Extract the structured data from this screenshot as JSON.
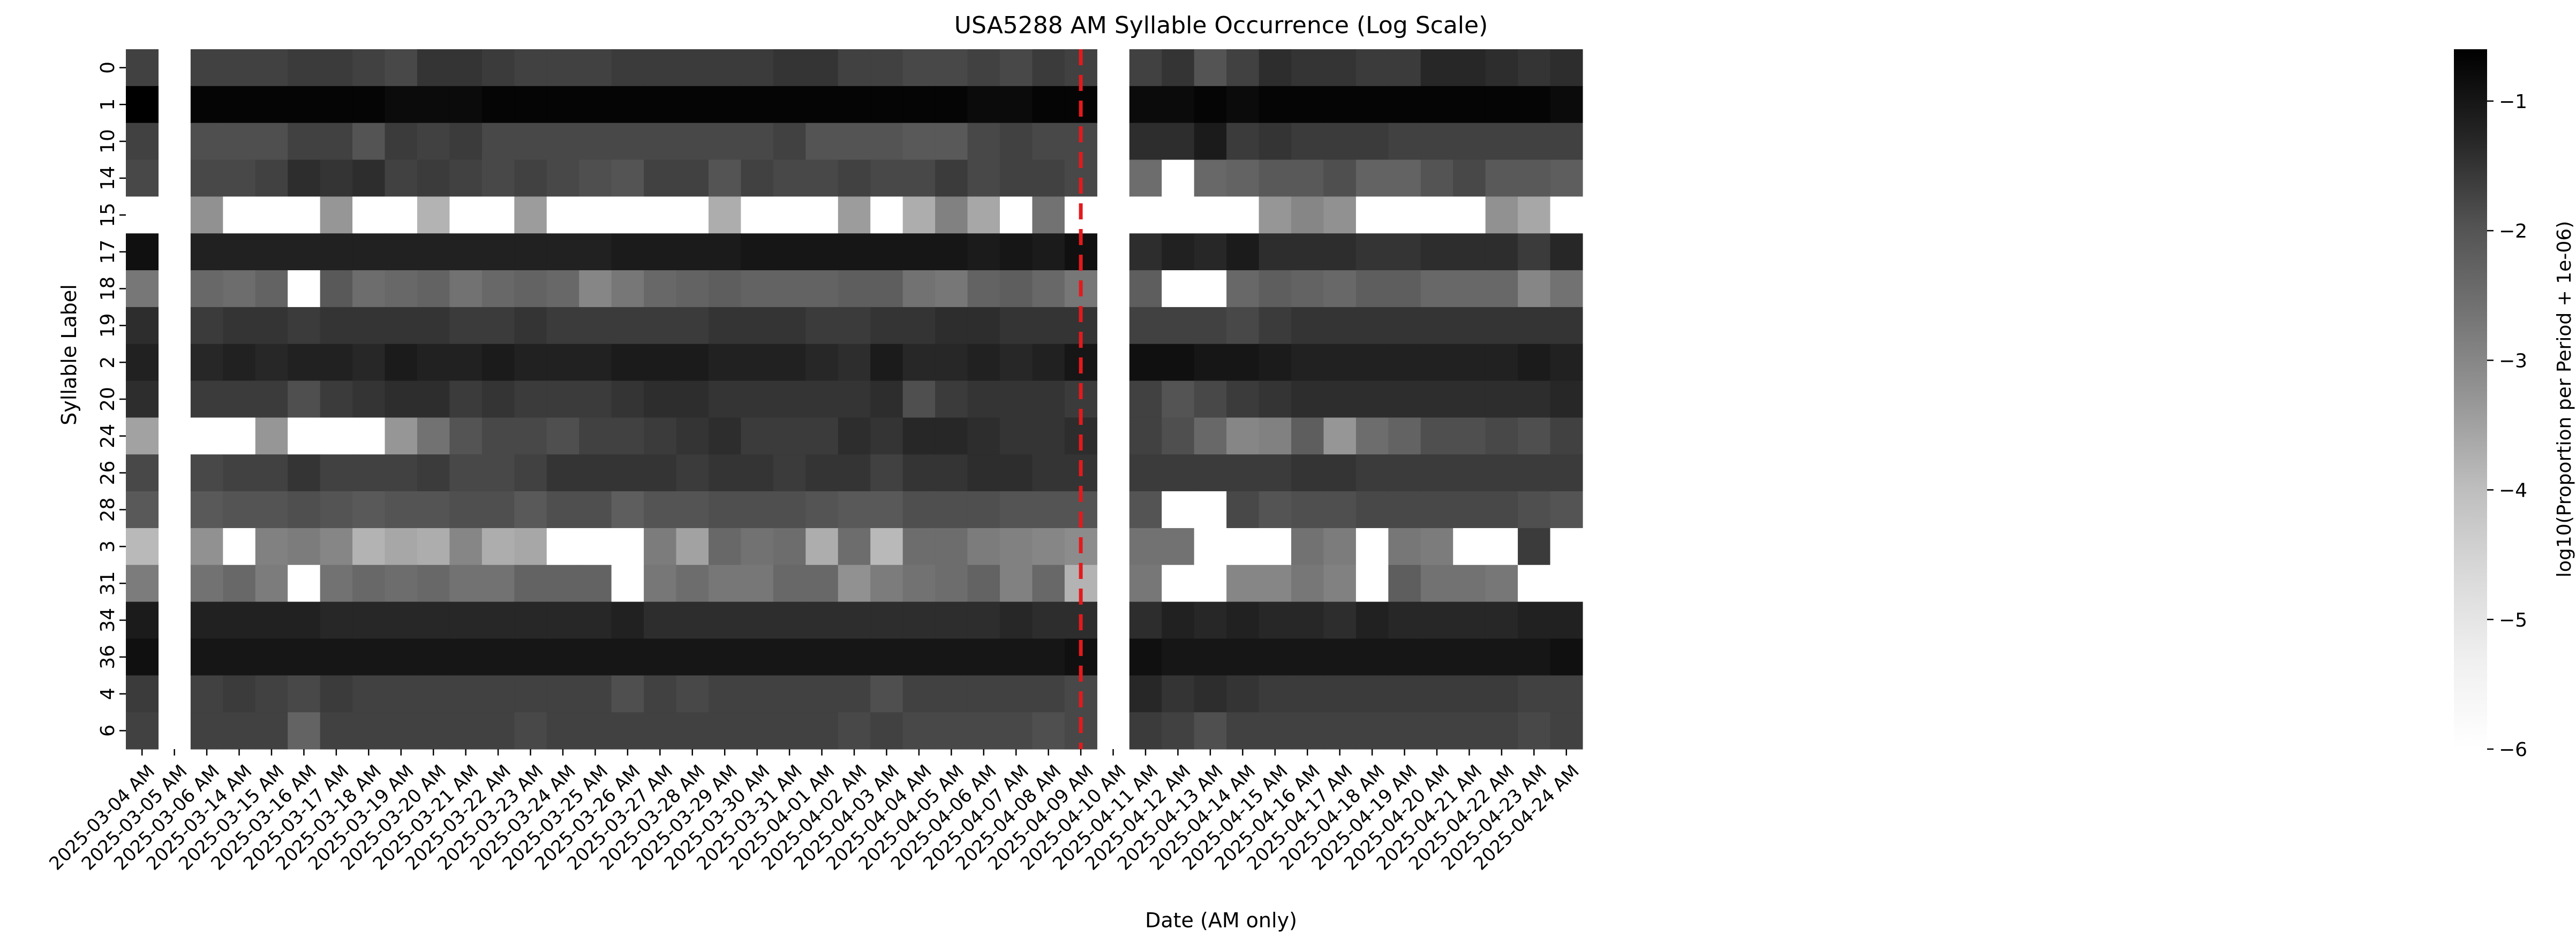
{
  "chart_data": {
    "type": "heatmap",
    "title": "USA5288 AM Syllable Occurrence (Log Scale)",
    "xlabel": "Date (AM only)",
    "ylabel": "Syllable Label",
    "colorbar": {
      "label": "log10(Proportion per Period + 1e-06)",
      "vmin": -6,
      "vmax": -0.6,
      "ticks": [
        -1,
        -2,
        -3,
        -4,
        -5,
        -6
      ],
      "tick_labels": [
        "−1",
        "−2",
        "−3",
        "−4",
        "−5",
        "−6"
      ],
      "colormap": "Greys"
    },
    "x_labels": [
      "2025-03-04 AM",
      "2025-03-05 AM",
      "2025-03-06 AM",
      "2025-03-14 AM",
      "2025-03-15 AM",
      "2025-03-16 AM",
      "2025-03-17 AM",
      "2025-03-18 AM",
      "2025-03-19 AM",
      "2025-03-20 AM",
      "2025-03-21 AM",
      "2025-03-22 AM",
      "2025-03-23 AM",
      "2025-03-24 AM",
      "2025-03-25 AM",
      "2025-03-26 AM",
      "2025-03-27 AM",
      "2025-03-28 AM",
      "2025-03-29 AM",
      "2025-03-30 AM",
      "2025-03-31 AM",
      "2025-04-01 AM",
      "2025-04-02 AM",
      "2025-04-03 AM",
      "2025-04-04 AM",
      "2025-04-05 AM",
      "2025-04-06 AM",
      "2025-04-07 AM",
      "2025-04-08 AM",
      "2025-04-09 AM",
      "2025-04-10 AM",
      "2025-04-11 AM",
      "2025-04-12 AM",
      "2025-04-13 AM",
      "2025-04-14 AM",
      "2025-04-15 AM",
      "2025-04-16 AM",
      "2025-04-17 AM",
      "2025-04-18 AM",
      "2025-04-19 AM",
      "2025-04-20 AM",
      "2025-04-21 AM",
      "2025-04-22 AM",
      "2025-04-23 AM",
      "2025-04-24 AM"
    ],
    "y_labels": [
      "0",
      "1",
      "10",
      "14",
      "15",
      "17",
      "18",
      "19",
      "2",
      "20",
      "24",
      "26",
      "28",
      "3",
      "31",
      "34",
      "36",
      "4",
      "6"
    ],
    "empty_columns": [
      "2025-03-05 AM",
      "2025-04-10 AM"
    ],
    "missing_value": -6,
    "z": [
      [
        -1.7,
        null,
        -1.7,
        -1.7,
        -1.7,
        -1.6,
        -1.6,
        -1.7,
        -1.8,
        -1.5,
        -1.5,
        -1.6,
        -1.7,
        -1.7,
        -1.7,
        -1.6,
        -1.6,
        -1.6,
        -1.6,
        -1.6,
        -1.5,
        -1.5,
        -1.7,
        -1.7,
        -1.8,
        -1.8,
        -1.7,
        -1.8,
        -1.6,
        -1.7,
        null,
        -1.7,
        -1.5,
        -2.0,
        -1.7,
        -1.4,
        -1.5,
        -1.5,
        -1.6,
        -1.6,
        -1.3,
        -1.3,
        -1.4,
        -1.5,
        -1.4
      ],
      [
        -0.6,
        null,
        -0.7,
        -0.7,
        -0.7,
        -0.7,
        -0.7,
        -0.7,
        -0.8,
        -0.8,
        -0.8,
        -0.7,
        -0.7,
        -0.7,
        -0.7,
        -0.7,
        -0.7,
        -0.7,
        -0.7,
        -0.7,
        -0.7,
        -0.7,
        -0.7,
        -0.7,
        -0.7,
        -0.7,
        -0.8,
        -0.8,
        -0.7,
        -0.7,
        null,
        -0.8,
        -0.8,
        -0.7,
        -0.8,
        -0.7,
        -0.7,
        -0.7,
        -0.7,
        -0.7,
        -0.7,
        -0.7,
        -0.7,
        -0.7,
        -0.8
      ],
      [
        -1.7,
        null,
        -1.9,
        -1.9,
        -1.9,
        -1.7,
        -1.7,
        -2.0,
        -1.6,
        -1.7,
        -1.6,
        -1.8,
        -1.8,
        -1.8,
        -1.8,
        -1.8,
        -1.8,
        -1.8,
        -1.8,
        -1.8,
        -1.7,
        -2.0,
        -2.0,
        -2.0,
        -2.1,
        -2.1,
        -1.8,
        -1.7,
        -1.8,
        -1.8,
        null,
        -1.4,
        -1.4,
        -1.1,
        -1.6,
        -1.5,
        -1.6,
        -1.6,
        -1.6,
        -1.7,
        -1.7,
        -1.7,
        -1.7,
        -1.7,
        -1.7
      ],
      [
        -1.8,
        null,
        -1.8,
        -1.8,
        -1.7,
        -1.4,
        -1.5,
        -1.4,
        -1.7,
        -1.6,
        -1.7,
        -1.8,
        -1.7,
        -1.8,
        -1.9,
        -2.0,
        -1.7,
        -1.7,
        -2.0,
        -1.7,
        -1.8,
        -1.8,
        -1.7,
        -1.8,
        -1.8,
        -1.6,
        -1.8,
        -1.7,
        -1.7,
        -1.8,
        null,
        -2.5,
        -6,
        -2.4,
        -2.3,
        -2.1,
        -2.1,
        -1.9,
        -2.3,
        -2.3,
        -2.0,
        -1.8,
        -2.1,
        -2.1,
        -2.2
      ],
      [
        -6,
        null,
        -3.2,
        -6,
        -6,
        -6,
        -3.3,
        -6,
        -6,
        -3.8,
        -6,
        -6,
        -3.4,
        -6,
        -6,
        -6,
        -6,
        -6,
        -3.7,
        -6,
        -6,
        -6,
        -3.4,
        -6,
        -3.7,
        -2.9,
        -3.6,
        -6,
        -2.6,
        -6,
        null,
        -6,
        -6,
        -6,
        -6,
        -3.3,
        -3.0,
        -3.2,
        -6,
        -6,
        -6,
        -6,
        -3.2,
        -3.6,
        -6
      ],
      [
        -0.9,
        null,
        -1.2,
        -1.2,
        -1.2,
        -1.2,
        -1.2,
        -1.2,
        -1.2,
        -1.2,
        -1.2,
        -1.2,
        -1.2,
        -1.2,
        -1.2,
        -1.1,
        -1.1,
        -1.1,
        -1.1,
        -1.0,
        -1.0,
        -1.0,
        -1.0,
        -1.0,
        -1.0,
        -1.0,
        -1.1,
        -1.0,
        -1.1,
        -0.9,
        null,
        -1.4,
        -1.2,
        -1.3,
        -1.1,
        -1.4,
        -1.4,
        -1.4,
        -1.5,
        -1.5,
        -1.4,
        -1.4,
        -1.4,
        -1.6,
        -1.3
      ],
      [
        -2.7,
        null,
        -2.4,
        -2.5,
        -2.3,
        -6,
        -2.1,
        -2.5,
        -2.4,
        -2.3,
        -2.6,
        -2.4,
        -2.3,
        -2.4,
        -3.0,
        -2.7,
        -2.4,
        -2.3,
        -2.2,
        -2.3,
        -2.3,
        -2.3,
        -2.2,
        -2.2,
        -2.6,
        -2.7,
        -2.3,
        -2.2,
        -2.4,
        -2.7,
        null,
        -2.2,
        -6,
        -6,
        -2.4,
        -2.2,
        -2.3,
        -2.4,
        -2.2,
        -2.2,
        -2.4,
        -2.4,
        -2.4,
        -3.0,
        -2.6
      ],
      [
        -1.4,
        null,
        -1.6,
        -1.5,
        -1.5,
        -1.6,
        -1.5,
        -1.5,
        -1.5,
        -1.5,
        -1.6,
        -1.6,
        -1.5,
        -1.6,
        -1.6,
        -1.6,
        -1.6,
        -1.6,
        -1.5,
        -1.5,
        -1.5,
        -1.6,
        -1.6,
        -1.5,
        -1.5,
        -1.4,
        -1.4,
        -1.5,
        -1.5,
        -1.5,
        null,
        -1.7,
        -1.7,
        -1.7,
        -1.8,
        -1.6,
        -1.5,
        -1.5,
        -1.5,
        -1.5,
        -1.5,
        -1.5,
        -1.5,
        -1.5,
        -1.5
      ],
      [
        -1.2,
        null,
        -1.3,
        -1.2,
        -1.3,
        -1.2,
        -1.2,
        -1.3,
        -1.1,
        -1.2,
        -1.2,
        -1.1,
        -1.2,
        -1.2,
        -1.2,
        -1.1,
        -1.1,
        -1.1,
        -1.2,
        -1.2,
        -1.2,
        -1.3,
        -1.4,
        -1.1,
        -1.3,
        -1.3,
        -1.2,
        -1.3,
        -1.2,
        -1.0,
        null,
        -0.9,
        -0.9,
        -1.0,
        -1.0,
        -1.1,
        -1.2,
        -1.2,
        -1.2,
        -1.2,
        -1.2,
        -1.2,
        -1.2,
        -1.1,
        -1.2
      ],
      [
        -1.4,
        null,
        -1.6,
        -1.6,
        -1.6,
        -1.9,
        -1.6,
        -1.5,
        -1.4,
        -1.4,
        -1.6,
        -1.5,
        -1.6,
        -1.6,
        -1.6,
        -1.5,
        -1.4,
        -1.4,
        -1.5,
        -1.5,
        -1.5,
        -1.5,
        -1.5,
        -1.4,
        -1.9,
        -1.6,
        -1.5,
        -1.5,
        -1.5,
        -1.6,
        null,
        -1.7,
        -2.0,
        -1.8,
        -1.6,
        -1.5,
        -1.4,
        -1.4,
        -1.4,
        -1.4,
        -1.4,
        -1.4,
        -1.4,
        -1.4,
        -1.3
      ],
      [
        -3.5,
        null,
        -6,
        -6,
        -3.3,
        -6,
        -6,
        -6,
        -3.3,
        -2.6,
        -2.0,
        -1.8,
        -1.8,
        -1.9,
        -1.7,
        -1.7,
        -1.6,
        -1.5,
        -1.4,
        -1.6,
        -1.6,
        -1.6,
        -1.4,
        -1.5,
        -1.3,
        -1.3,
        -1.4,
        -1.5,
        -1.5,
        -1.4,
        null,
        -1.7,
        -1.9,
        -2.4,
        -3.0,
        -2.9,
        -2.2,
        -3.3,
        -2.5,
        -2.3,
        -1.9,
        -1.9,
        -1.8,
        -1.9,
        -1.7
      ],
      [
        -1.8,
        null,
        -1.8,
        -1.7,
        -1.7,
        -1.5,
        -1.7,
        -1.7,
        -1.7,
        -1.6,
        -1.8,
        -1.8,
        -1.7,
        -1.5,
        -1.5,
        -1.5,
        -1.5,
        -1.6,
        -1.5,
        -1.5,
        -1.6,
        -1.5,
        -1.5,
        -1.7,
        -1.5,
        -1.5,
        -1.4,
        -1.4,
        -1.5,
        -1.5,
        null,
        -1.6,
        -1.6,
        -1.6,
        -1.6,
        -1.6,
        -1.5,
        -1.5,
        -1.6,
        -1.6,
        -1.6,
        -1.6,
        -1.6,
        -1.6,
        -1.6
      ],
      [
        -2.1,
        null,
        -2.1,
        -2.0,
        -2.0,
        -1.9,
        -2.0,
        -2.1,
        -2.0,
        -2.0,
        -1.9,
        -1.9,
        -2.1,
        -1.9,
        -1.9,
        -2.2,
        -2.0,
        -2.0,
        -1.9,
        -1.9,
        -1.9,
        -2.0,
        -2.1,
        -2.1,
        -1.9,
        -1.9,
        -1.9,
        -2.0,
        -2.0,
        -2.0,
        null,
        -2.0,
        -6,
        -6,
        -1.8,
        -2.0,
        -1.9,
        -1.9,
        -1.8,
        -1.8,
        -1.8,
        -1.8,
        -1.8,
        -1.9,
        -2.0
      ],
      [
        -3.9,
        null,
        -3.2,
        -6,
        -2.9,
        -2.8,
        -3.0,
        -3.8,
        -3.6,
        -3.7,
        -3.0,
        -3.7,
        -3.6,
        -6,
        -6,
        -6,
        -2.8,
        -3.5,
        -2.4,
        -2.6,
        -2.5,
        -3.7,
        -2.5,
        -3.9,
        -2.5,
        -2.5,
        -2.8,
        -2.9,
        -3.0,
        -3.1,
        null,
        -2.6,
        -2.6,
        -6,
        -6,
        -6,
        -2.6,
        -2.8,
        -6,
        -2.7,
        -2.8,
        -6,
        -6,
        -1.6,
        -6
      ],
      [
        -2.8,
        null,
        -2.6,
        -2.4,
        -2.8,
        -6,
        -2.6,
        -2.4,
        -2.5,
        -2.4,
        -2.6,
        -2.6,
        -2.3,
        -2.3,
        -2.3,
        -6,
        -2.7,
        -2.5,
        -2.7,
        -2.7,
        -2.4,
        -2.4,
        -3.2,
        -2.8,
        -2.6,
        -2.5,
        -2.3,
        -2.9,
        -2.4,
        -3.8,
        null,
        -2.7,
        -6,
        -6,
        -3.0,
        -3.0,
        -2.7,
        -2.9,
        -6,
        -2.2,
        -2.6,
        -2.6,
        -2.7,
        -6,
        -6
      ],
      [
        -1.1,
        null,
        -1.2,
        -1.2,
        -1.2,
        -1.2,
        -1.3,
        -1.3,
        -1.3,
        -1.3,
        -1.3,
        -1.3,
        -1.3,
        -1.3,
        -1.3,
        -1.2,
        -1.4,
        -1.4,
        -1.4,
        -1.4,
        -1.4,
        -1.4,
        -1.4,
        -1.4,
        -1.4,
        -1.4,
        -1.4,
        -1.3,
        -1.4,
        -1.4,
        null,
        -1.4,
        -1.2,
        -1.3,
        -1.2,
        -1.3,
        -1.3,
        -1.4,
        -1.2,
        -1.3,
        -1.3,
        -1.3,
        -1.3,
        -1.2,
        -1.2
      ],
      [
        -0.9,
        null,
        -1.0,
        -1.0,
        -1.0,
        -1.0,
        -1.0,
        -1.0,
        -1.0,
        -1.0,
        -1.0,
        -1.0,
        -1.0,
        -1.0,
        -1.0,
        -1.0,
        -1.0,
        -1.0,
        -1.0,
        -1.0,
        -1.0,
        -1.0,
        -1.0,
        -1.0,
        -1.0,
        -1.0,
        -1.0,
        -1.0,
        -1.0,
        -0.9,
        null,
        -0.9,
        -1.0,
        -1.0,
        -1.0,
        -1.0,
        -1.0,
        -1.0,
        -1.0,
        -1.0,
        -1.0,
        -1.0,
        -1.0,
        -1.0,
        -0.9
      ],
      [
        -1.6,
        null,
        -1.7,
        -1.6,
        -1.7,
        -1.8,
        -1.6,
        -1.7,
        -1.7,
        -1.7,
        -1.7,
        -1.7,
        -1.7,
        -1.7,
        -1.7,
        -1.9,
        -1.7,
        -1.8,
        -1.7,
        -1.7,
        -1.7,
        -1.7,
        -1.7,
        -1.9,
        -1.7,
        -1.7,
        -1.7,
        -1.7,
        -1.7,
        -1.8,
        null,
        -1.3,
        -1.5,
        -1.4,
        -1.5,
        -1.6,
        -1.6,
        -1.6,
        -1.6,
        -1.6,
        -1.6,
        -1.6,
        -1.6,
        -1.7,
        -1.7
      ],
      [
        -1.7,
        null,
        -1.7,
        -1.7,
        -1.7,
        -2.3,
        -1.7,
        -1.7,
        -1.7,
        -1.7,
        -1.7,
        -1.7,
        -1.8,
        -1.7,
        -1.7,
        -1.7,
        -1.7,
        -1.7,
        -1.7,
        -1.7,
        -1.7,
        -1.7,
        -1.8,
        -1.7,
        -1.8,
        -1.8,
        -1.8,
        -1.8,
        -1.9,
        -1.8,
        null,
        -1.6,
        -1.7,
        -1.9,
        -1.7,
        -1.7,
        -1.7,
        -1.7,
        -1.7,
        -1.7,
        -1.7,
        -1.7,
        -1.7,
        -1.8,
        -1.7
      ]
    ],
    "reference_line": {
      "x_between": [
        "2025-04-08 AM",
        "2025-04-09 AM"
      ],
      "position": 0.5,
      "style": "dashed",
      "color": "#e31a1c"
    },
    "grid": false,
    "legend": "none"
  }
}
